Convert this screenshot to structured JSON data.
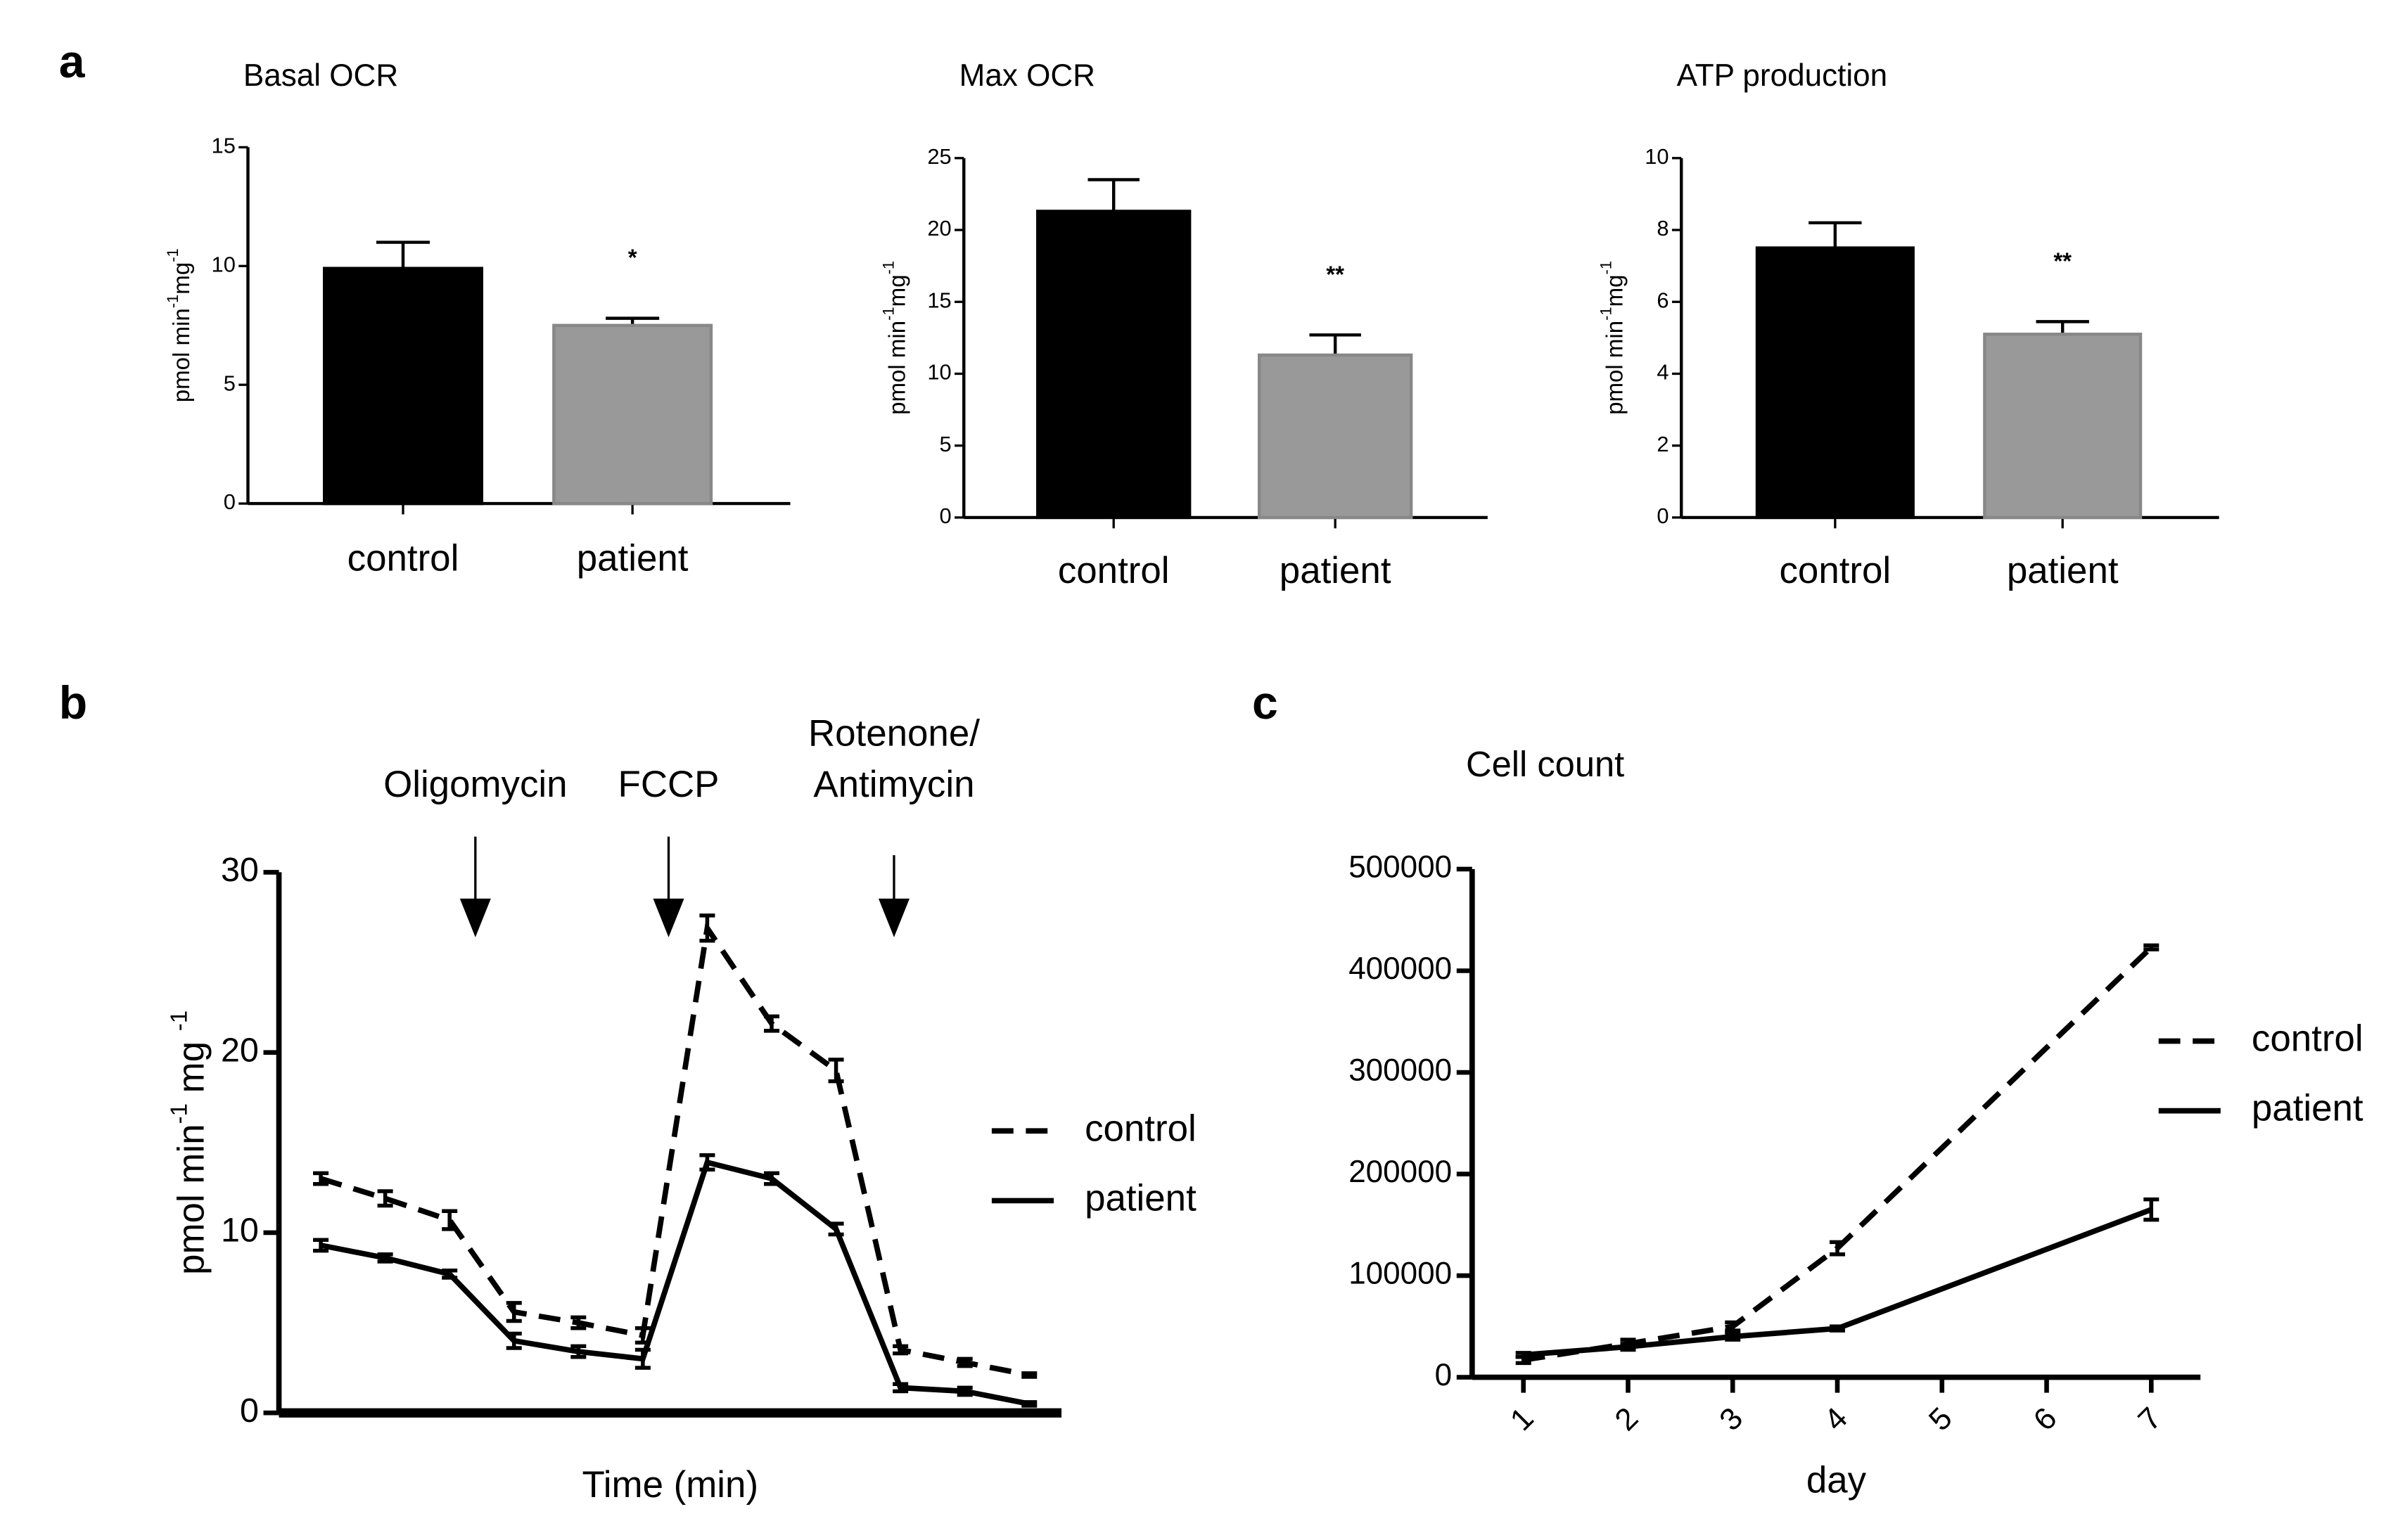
{
  "chart_data": [
    {
      "type": "bar",
      "panel": "a",
      "title": "Basal OCR",
      "ylabel": [
        {
          "text": "pmol min"
        },
        {
          "text": "-1",
          "sup": true
        },
        {
          "text": "mg"
        },
        {
          "text": "-1",
          "sup": true
        }
      ],
      "categories": [
        "control",
        "patient"
      ],
      "values": [
        9.9,
        7.5
      ],
      "errors": [
        1.1,
        0.3
      ],
      "colors": [
        "#000000",
        "#999999"
      ],
      "annotations": [
        {
          "category": "patient",
          "text": "*"
        }
      ],
      "ylim": [
        0,
        15
      ],
      "yticks": [
        0,
        5,
        10,
        15
      ]
    },
    {
      "type": "bar",
      "title": "Max OCR",
      "ylabel": [
        {
          "text": "pmol min"
        },
        {
          "text": "-1",
          "sup": true
        },
        {
          "text": "mg"
        },
        {
          "text": "-1",
          "sup": true
        }
      ],
      "categories": [
        "control",
        "patient"
      ],
      "values": [
        21.3,
        11.3
      ],
      "errors": [
        2.2,
        1.4
      ],
      "colors": [
        "#000000",
        "#999999"
      ],
      "annotations": [
        {
          "category": "patient",
          "text": "**"
        }
      ],
      "ylim": [
        0,
        25
      ],
      "yticks": [
        0,
        5,
        10,
        15,
        20,
        25
      ]
    },
    {
      "type": "bar",
      "title": "ATP production",
      "ylabel": [
        {
          "text": "pmol min"
        },
        {
          "text": "-1",
          "sup": true
        },
        {
          "text": "mg"
        },
        {
          "text": "-1",
          "sup": true
        }
      ],
      "categories": [
        "control",
        "patient"
      ],
      "values": [
        7.5,
        5.1
      ],
      "errors": [
        0.7,
        0.35
      ],
      "colors": [
        "#000000",
        "#999999"
      ],
      "annotations": [
        {
          "category": "patient",
          "text": "**"
        }
      ],
      "ylim": [
        0,
        10
      ],
      "yticks": [
        0,
        2,
        4,
        6,
        8,
        10
      ]
    },
    {
      "type": "line",
      "panel": "b",
      "xlabel": "Time (min)",
      "ylabel": [
        {
          "text": "pmol min"
        },
        {
          "text": "-1",
          "sup": true
        },
        {
          "text": " mg "
        },
        {
          "text": "-1",
          "sup": true
        }
      ],
      "x": [
        1,
        2,
        3,
        4,
        5,
        6,
        7,
        8,
        9,
        10,
        11,
        12
      ],
      "xlim": [
        0.35,
        12.5
      ],
      "series": [
        {
          "name": "control",
          "color": "#000000",
          "dash": true,
          "values": [
            13.0,
            11.9,
            10.7,
            5.6,
            5.0,
            4.3,
            26.9,
            21.6,
            19.0,
            3.5,
            2.8,
            2.1
          ],
          "errors": [
            0.3,
            0.4,
            0.5,
            0.5,
            0.3,
            0.4,
            0.7,
            0.4,
            0.6,
            0.2,
            0.2,
            0.1
          ]
        },
        {
          "name": "patient",
          "color": "#000000",
          "dash": false,
          "values": [
            9.3,
            8.6,
            7.7,
            4.0,
            3.4,
            3.0,
            13.9,
            13.0,
            10.2,
            1.4,
            1.2,
            0.5
          ],
          "errors": [
            0.3,
            0.2,
            0.2,
            0.4,
            0.3,
            0.5,
            0.4,
            0.3,
            0.3,
            0.2,
            0.2,
            0.1
          ]
        }
      ],
      "annotations": [
        {
          "text": [
            "Oligomycin"
          ],
          "x": 3.4
        },
        {
          "text": [
            "FCCP"
          ],
          "x": 6.4
        },
        {
          "text": [
            "Rotenone/",
            "Antimycin"
          ],
          "x": 9.9
        }
      ],
      "ylim": [
        0,
        30
      ],
      "yticks": [
        0,
        10,
        20,
        30
      ]
    },
    {
      "type": "line",
      "panel": "c",
      "title": "Cell count",
      "xlabel": "day",
      "x": [
        1,
        2,
        3,
        4,
        7
      ],
      "xlim": [
        0.51,
        7.47
      ],
      "xticks": [
        1,
        2,
        3,
        4,
        5,
        6,
        7
      ],
      "series": [
        {
          "name": "control",
          "color": "#000000",
          "dash": true,
          "values": [
            17000,
            33000,
            50000,
            127000,
            423000
          ],
          "errors": [
            3000,
            4000,
            4000,
            6000,
            2000
          ]
        },
        {
          "name": "patient",
          "color": "#000000",
          "dash": false,
          "values": [
            22000,
            30000,
            40000,
            48000,
            165000
          ],
          "errors": [
            2000,
            3000,
            3000,
            2000,
            10000
          ]
        }
      ],
      "ylim": [
        0,
        500000
      ],
      "yticks": [
        0,
        100000,
        200000,
        300000,
        400000,
        500000
      ]
    }
  ]
}
